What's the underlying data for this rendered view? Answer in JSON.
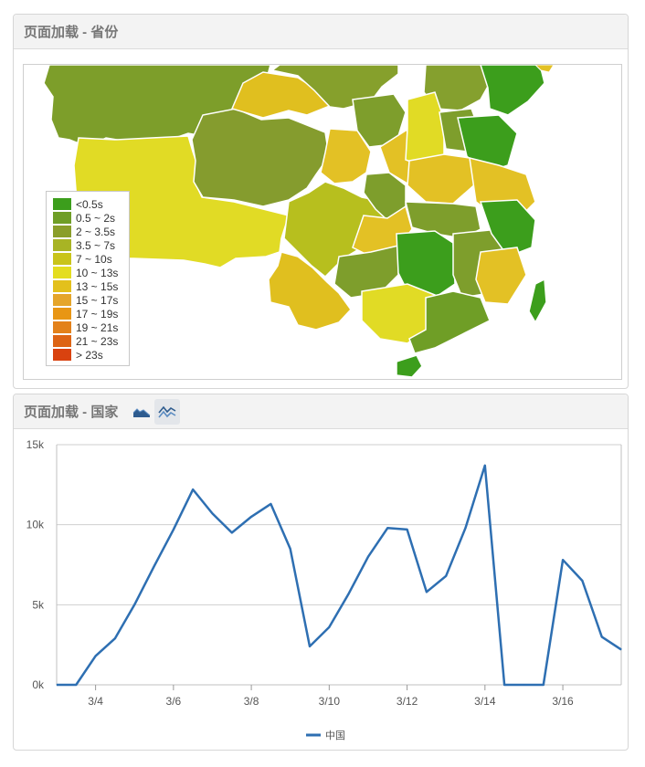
{
  "map_panel": {
    "title": "页面加载 - 省份",
    "legend": [
      {
        "label": "<0.5s",
        "color": "#3c9e1c"
      },
      {
        "label": "0.5 ~ 2s",
        "color": "#6f9e26"
      },
      {
        "label": "2 ~ 3.5s",
        "color": "#8a9e2a"
      },
      {
        "label": "3.5 ~ 7s",
        "color": "#a8b424"
      },
      {
        "label": "7 ~ 10s",
        "color": "#c9c41a"
      },
      {
        "label": "10 ~ 13s",
        "color": "#e4dd1f"
      },
      {
        "label": "13 ~ 15s",
        "color": "#e3c01c"
      },
      {
        "label": "15 ~ 17s",
        "color": "#e5a52a"
      },
      {
        "label": "17 ~ 19s",
        "color": "#e89614"
      },
      {
        "label": "19 ~ 21s",
        "color": "#e3811a"
      },
      {
        "label": "21 ~ 23s",
        "color": "#dd6414"
      },
      {
        "label": "> 23s",
        "color": "#d9420f"
      }
    ]
  },
  "chart_panel": {
    "title": "页面加载 - 国家",
    "icons": [
      "area-chart-icon",
      "line-chart-icon"
    ]
  },
  "chart_data": {
    "type": "line",
    "x": [
      "3/3",
      "3/3.5",
      "3/4",
      "3/4.5",
      "3/5",
      "3/5.5",
      "3/6",
      "3/6.5",
      "3/7",
      "3/7.5",
      "3/8",
      "3/8.5",
      "3/9",
      "3/9.5",
      "3/10",
      "3/10.5",
      "3/11",
      "3/11.5",
      "3/12",
      "3/12.5",
      "3/13",
      "3/13.5",
      "3/14",
      "3/14.5",
      "3/15",
      "3/15.5",
      "3/16",
      "3/16.5",
      "3/17",
      "3/17.5"
    ],
    "x_ticks": [
      "3/4",
      "3/6",
      "3/8",
      "3/10",
      "3/12",
      "3/14",
      "3/16"
    ],
    "series": [
      {
        "name": "中国",
        "color": "#2e6fb2",
        "values": [
          0,
          0,
          1800,
          2900,
          5000,
          7400,
          9700,
          12200,
          10700,
          9500,
          10500,
          11300,
          8500,
          2400,
          3600,
          5700,
          8000,
          9800,
          9700,
          5800,
          6800,
          9800,
          13700,
          0,
          0,
          0,
          7800,
          6500,
          3000,
          2200
        ]
      }
    ],
    "yticks": [
      "0k",
      "5k",
      "10k",
      "15k"
    ],
    "ylim": [
      0,
      15000
    ],
    "grid": true,
    "legend_position": "bottom-center"
  }
}
